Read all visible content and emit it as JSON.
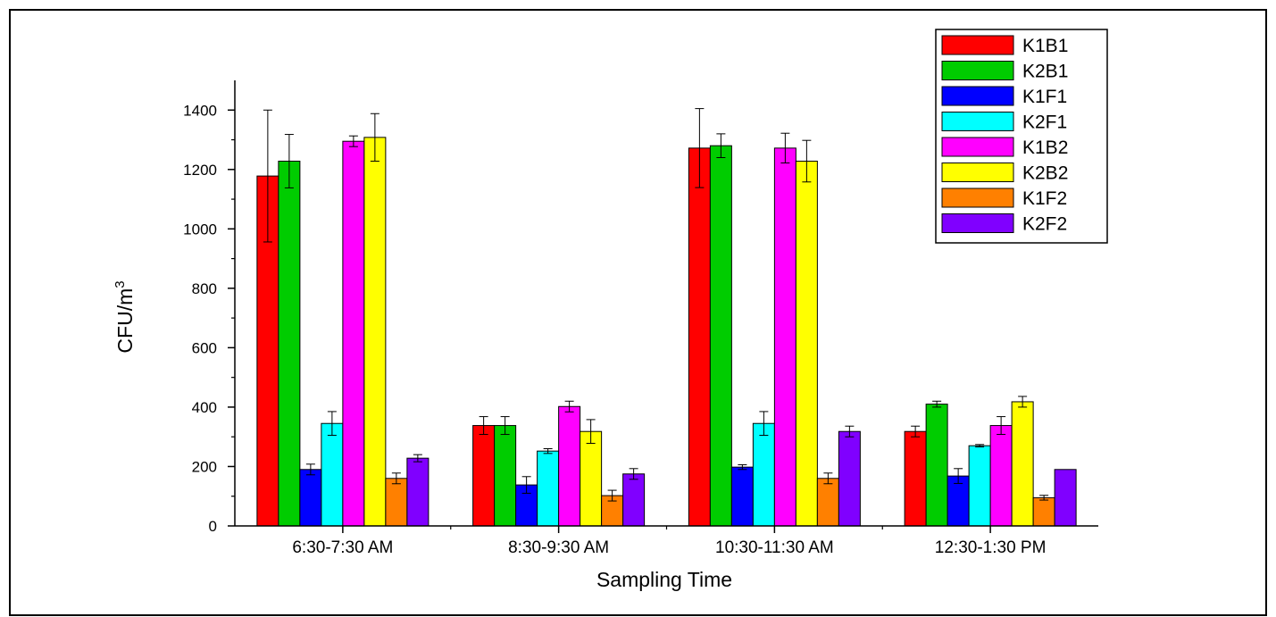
{
  "chart_data": {
    "type": "bar",
    "title": "",
    "xlabel": "Sampling Time",
    "ylabel": "CFU/m",
    "ylabel_superscript": "3",
    "ylim": [
      0,
      1500
    ],
    "yticks": [
      0,
      200,
      400,
      600,
      800,
      1000,
      1200,
      1400
    ],
    "categories": [
      "6:30-7:30 AM",
      "8:30-9:30 AM",
      "10:30-11:30 AM",
      "12:30-1:30 PM"
    ],
    "legend_position": "top-right",
    "series": [
      {
        "name": "K1B1",
        "color": "#ff0000",
        "values": [
          1178,
          338,
          1272,
          318
        ],
        "errors": [
          222,
          30,
          133,
          18
        ]
      },
      {
        "name": "K2B1",
        "color": "#00cc00",
        "values": [
          1228,
          338,
          1280,
          410
        ],
        "errors": [
          90,
          30,
          40,
          10
        ]
      },
      {
        "name": "K1F1",
        "color": "#0000ff",
        "values": [
          190,
          138,
          198,
          168
        ],
        "errors": [
          18,
          28,
          8,
          25
        ]
      },
      {
        "name": "K2F1",
        "color": "#00ffff",
        "values": [
          345,
          252,
          345,
          270
        ],
        "errors": [
          40,
          8,
          40,
          4
        ]
      },
      {
        "name": "K1B2",
        "color": "#ff00ff",
        "values": [
          1295,
          402,
          1272,
          338
        ],
        "errors": [
          18,
          18,
          50,
          30
        ]
      },
      {
        "name": "K2B2",
        "color": "#ffff00",
        "values": [
          1308,
          318,
          1228,
          418
        ],
        "errors": [
          80,
          40,
          70,
          18
        ]
      },
      {
        "name": "K1F2",
        "color": "#ff8000",
        "values": [
          160,
          102,
          160,
          95
        ],
        "errors": [
          18,
          18,
          18,
          8
        ]
      },
      {
        "name": "K2F2",
        "color": "#8000ff",
        "values": [
          228,
          175,
          318,
          190
        ],
        "errors": [
          12,
          18,
          18,
          0
        ]
      }
    ]
  }
}
